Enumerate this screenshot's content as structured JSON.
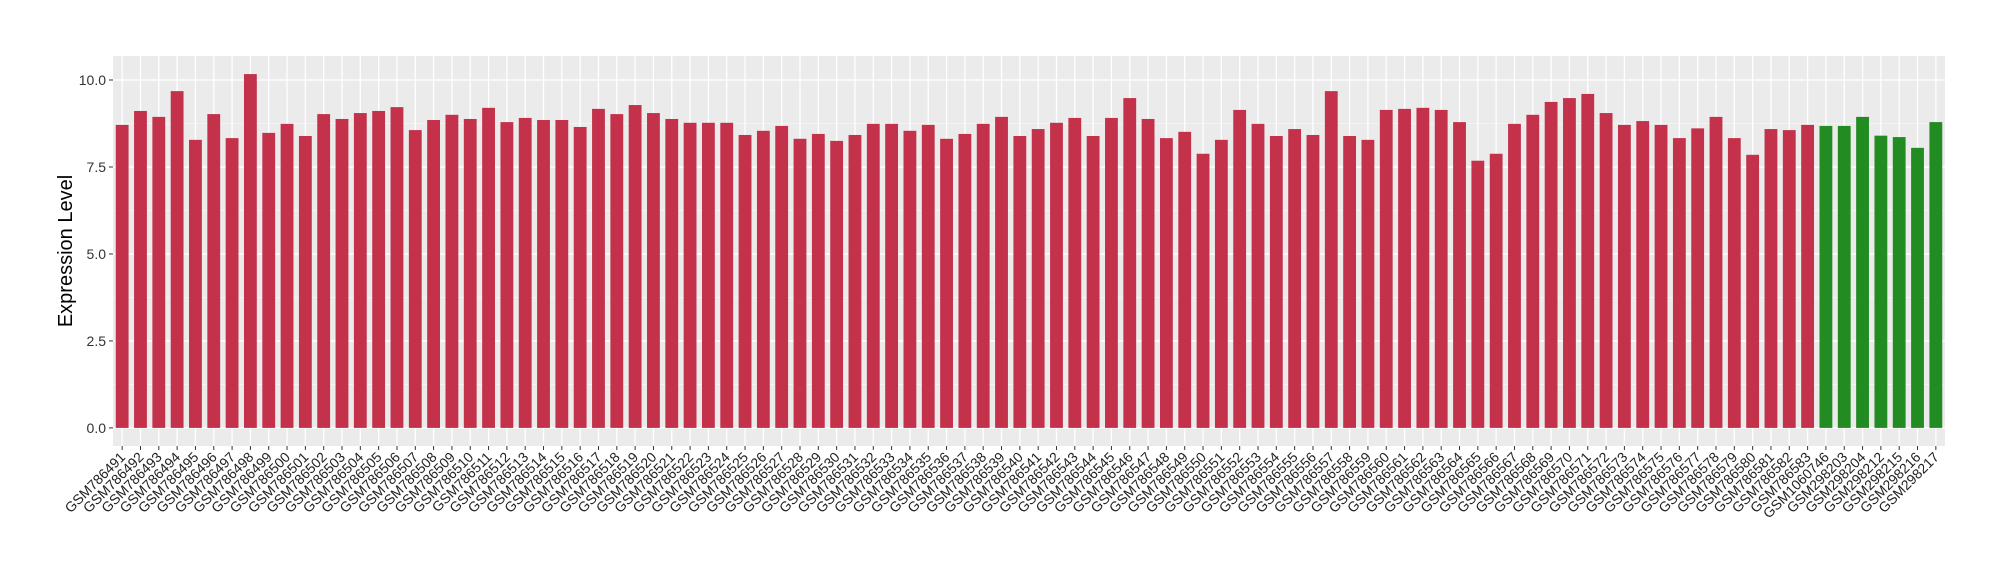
{
  "chart_data": {
    "type": "bar",
    "title": "",
    "xlabel": "",
    "ylabel": "Expression Level",
    "ylim": [
      -0.52,
      10.69
    ],
    "yticks": [
      0.0,
      2.5,
      5.0,
      7.5,
      10.0
    ],
    "ytick_labels": [
      "0.0",
      "2.5",
      "5.0",
      "7.5",
      "10.0"
    ],
    "grid": true,
    "legend": "none",
    "colors": {
      "group1": "#C3314A",
      "group2": "#228B22",
      "panel": "#EBEBEB",
      "grid": "#FFFFFF"
    },
    "categories": [
      "GSM786491",
      "GSM786492",
      "GSM786493",
      "GSM786494",
      "GSM786495",
      "GSM786496",
      "GSM786497",
      "GSM786498",
      "GSM786499",
      "GSM786500",
      "GSM786501",
      "GSM786502",
      "GSM786503",
      "GSM786504",
      "GSM786505",
      "GSM786506",
      "GSM786507",
      "GSM786508",
      "GSM786509",
      "GSM786510",
      "GSM786511",
      "GSM786512",
      "GSM786513",
      "GSM786514",
      "GSM786515",
      "GSM786516",
      "GSM786517",
      "GSM786518",
      "GSM786519",
      "GSM786520",
      "GSM786521",
      "GSM786522",
      "GSM786523",
      "GSM786524",
      "GSM786525",
      "GSM786526",
      "GSM786527",
      "GSM786528",
      "GSM786529",
      "GSM786530",
      "GSM786531",
      "GSM786532",
      "GSM786533",
      "GSM786534",
      "GSM786535",
      "GSM786536",
      "GSM786537",
      "GSM786538",
      "GSM786539",
      "GSM786540",
      "GSM786541",
      "GSM786542",
      "GSM786543",
      "GSM786544",
      "GSM786545",
      "GSM786546",
      "GSM786547",
      "GSM786548",
      "GSM786549",
      "GSM786550",
      "GSM786551",
      "GSM786552",
      "GSM786553",
      "GSM786554",
      "GSM786555",
      "GSM786556",
      "GSM786557",
      "GSM786558",
      "GSM786559",
      "GSM786560",
      "GSM786561",
      "GSM786562",
      "GSM786563",
      "GSM786564",
      "GSM786565",
      "GSM786566",
      "GSM786567",
      "GSM786568",
      "GSM786569",
      "GSM786570",
      "GSM786571",
      "GSM786572",
      "GSM786573",
      "GSM786574",
      "GSM786575",
      "GSM786576",
      "GSM786577",
      "GSM786578",
      "GSM786579",
      "GSM786580",
      "GSM786581",
      "GSM786582",
      "GSM786583",
      "GSM1060746",
      "GSM298203",
      "GSM298204",
      "GSM298212",
      "GSM298215",
      "GSM298216",
      "GSM298217"
    ],
    "values": [
      8.71,
      9.11,
      8.94,
      9.68,
      8.28,
      9.02,
      8.33,
      10.17,
      8.48,
      8.74,
      8.39,
      9.02,
      8.88,
      9.05,
      9.11,
      9.22,
      8.56,
      8.85,
      9.0,
      8.88,
      9.2,
      8.79,
      8.91,
      8.85,
      8.85,
      8.65,
      9.17,
      9.02,
      9.28,
      9.05,
      8.88,
      8.77,
      8.77,
      8.77,
      8.42,
      8.54,
      8.68,
      8.31,
      8.45,
      8.25,
      8.42,
      8.74,
      8.74,
      8.54,
      8.71,
      8.31,
      8.45,
      8.74,
      8.94,
      8.39,
      8.59,
      8.77,
      8.91,
      8.39,
      8.91,
      9.48,
      8.88,
      8.33,
      8.51,
      7.88,
      8.28,
      9.14,
      8.74,
      8.39,
      8.59,
      8.42,
      9.68,
      8.39,
      8.28,
      9.14,
      9.17,
      9.2,
      9.14,
      8.79,
      7.68,
      7.88,
      8.74,
      9.0,
      9.37,
      9.48,
      9.6,
      9.05,
      8.71,
      8.82,
      8.71,
      8.33,
      8.61,
      8.94,
      8.33,
      7.85,
      8.59,
      8.56,
      8.71,
      8.68,
      8.68,
      8.94,
      8.4,
      8.36,
      8.05,
      8.79
    ],
    "groups": [
      "group1",
      "group1",
      "group1",
      "group1",
      "group1",
      "group1",
      "group1",
      "group1",
      "group1",
      "group1",
      "group1",
      "group1",
      "group1",
      "group1",
      "group1",
      "group1",
      "group1",
      "group1",
      "group1",
      "group1",
      "group1",
      "group1",
      "group1",
      "group1",
      "group1",
      "group1",
      "group1",
      "group1",
      "group1",
      "group1",
      "group1",
      "group1",
      "group1",
      "group1",
      "group1",
      "group1",
      "group1",
      "group1",
      "group1",
      "group1",
      "group1",
      "group1",
      "group1",
      "group1",
      "group1",
      "group1",
      "group1",
      "group1",
      "group1",
      "group1",
      "group1",
      "group1",
      "group1",
      "group1",
      "group1",
      "group1",
      "group1",
      "group1",
      "group1",
      "group1",
      "group1",
      "group1",
      "group1",
      "group1",
      "group1",
      "group1",
      "group1",
      "group1",
      "group1",
      "group1",
      "group1",
      "group1",
      "group1",
      "group1",
      "group1",
      "group1",
      "group1",
      "group1",
      "group1",
      "group1",
      "group1",
      "group1",
      "group1",
      "group1",
      "group1",
      "group1",
      "group1",
      "group1",
      "group1",
      "group1",
      "group1",
      "group1",
      "group1",
      "group2",
      "group2",
      "group2",
      "group2",
      "group2",
      "group2",
      "group2"
    ]
  }
}
